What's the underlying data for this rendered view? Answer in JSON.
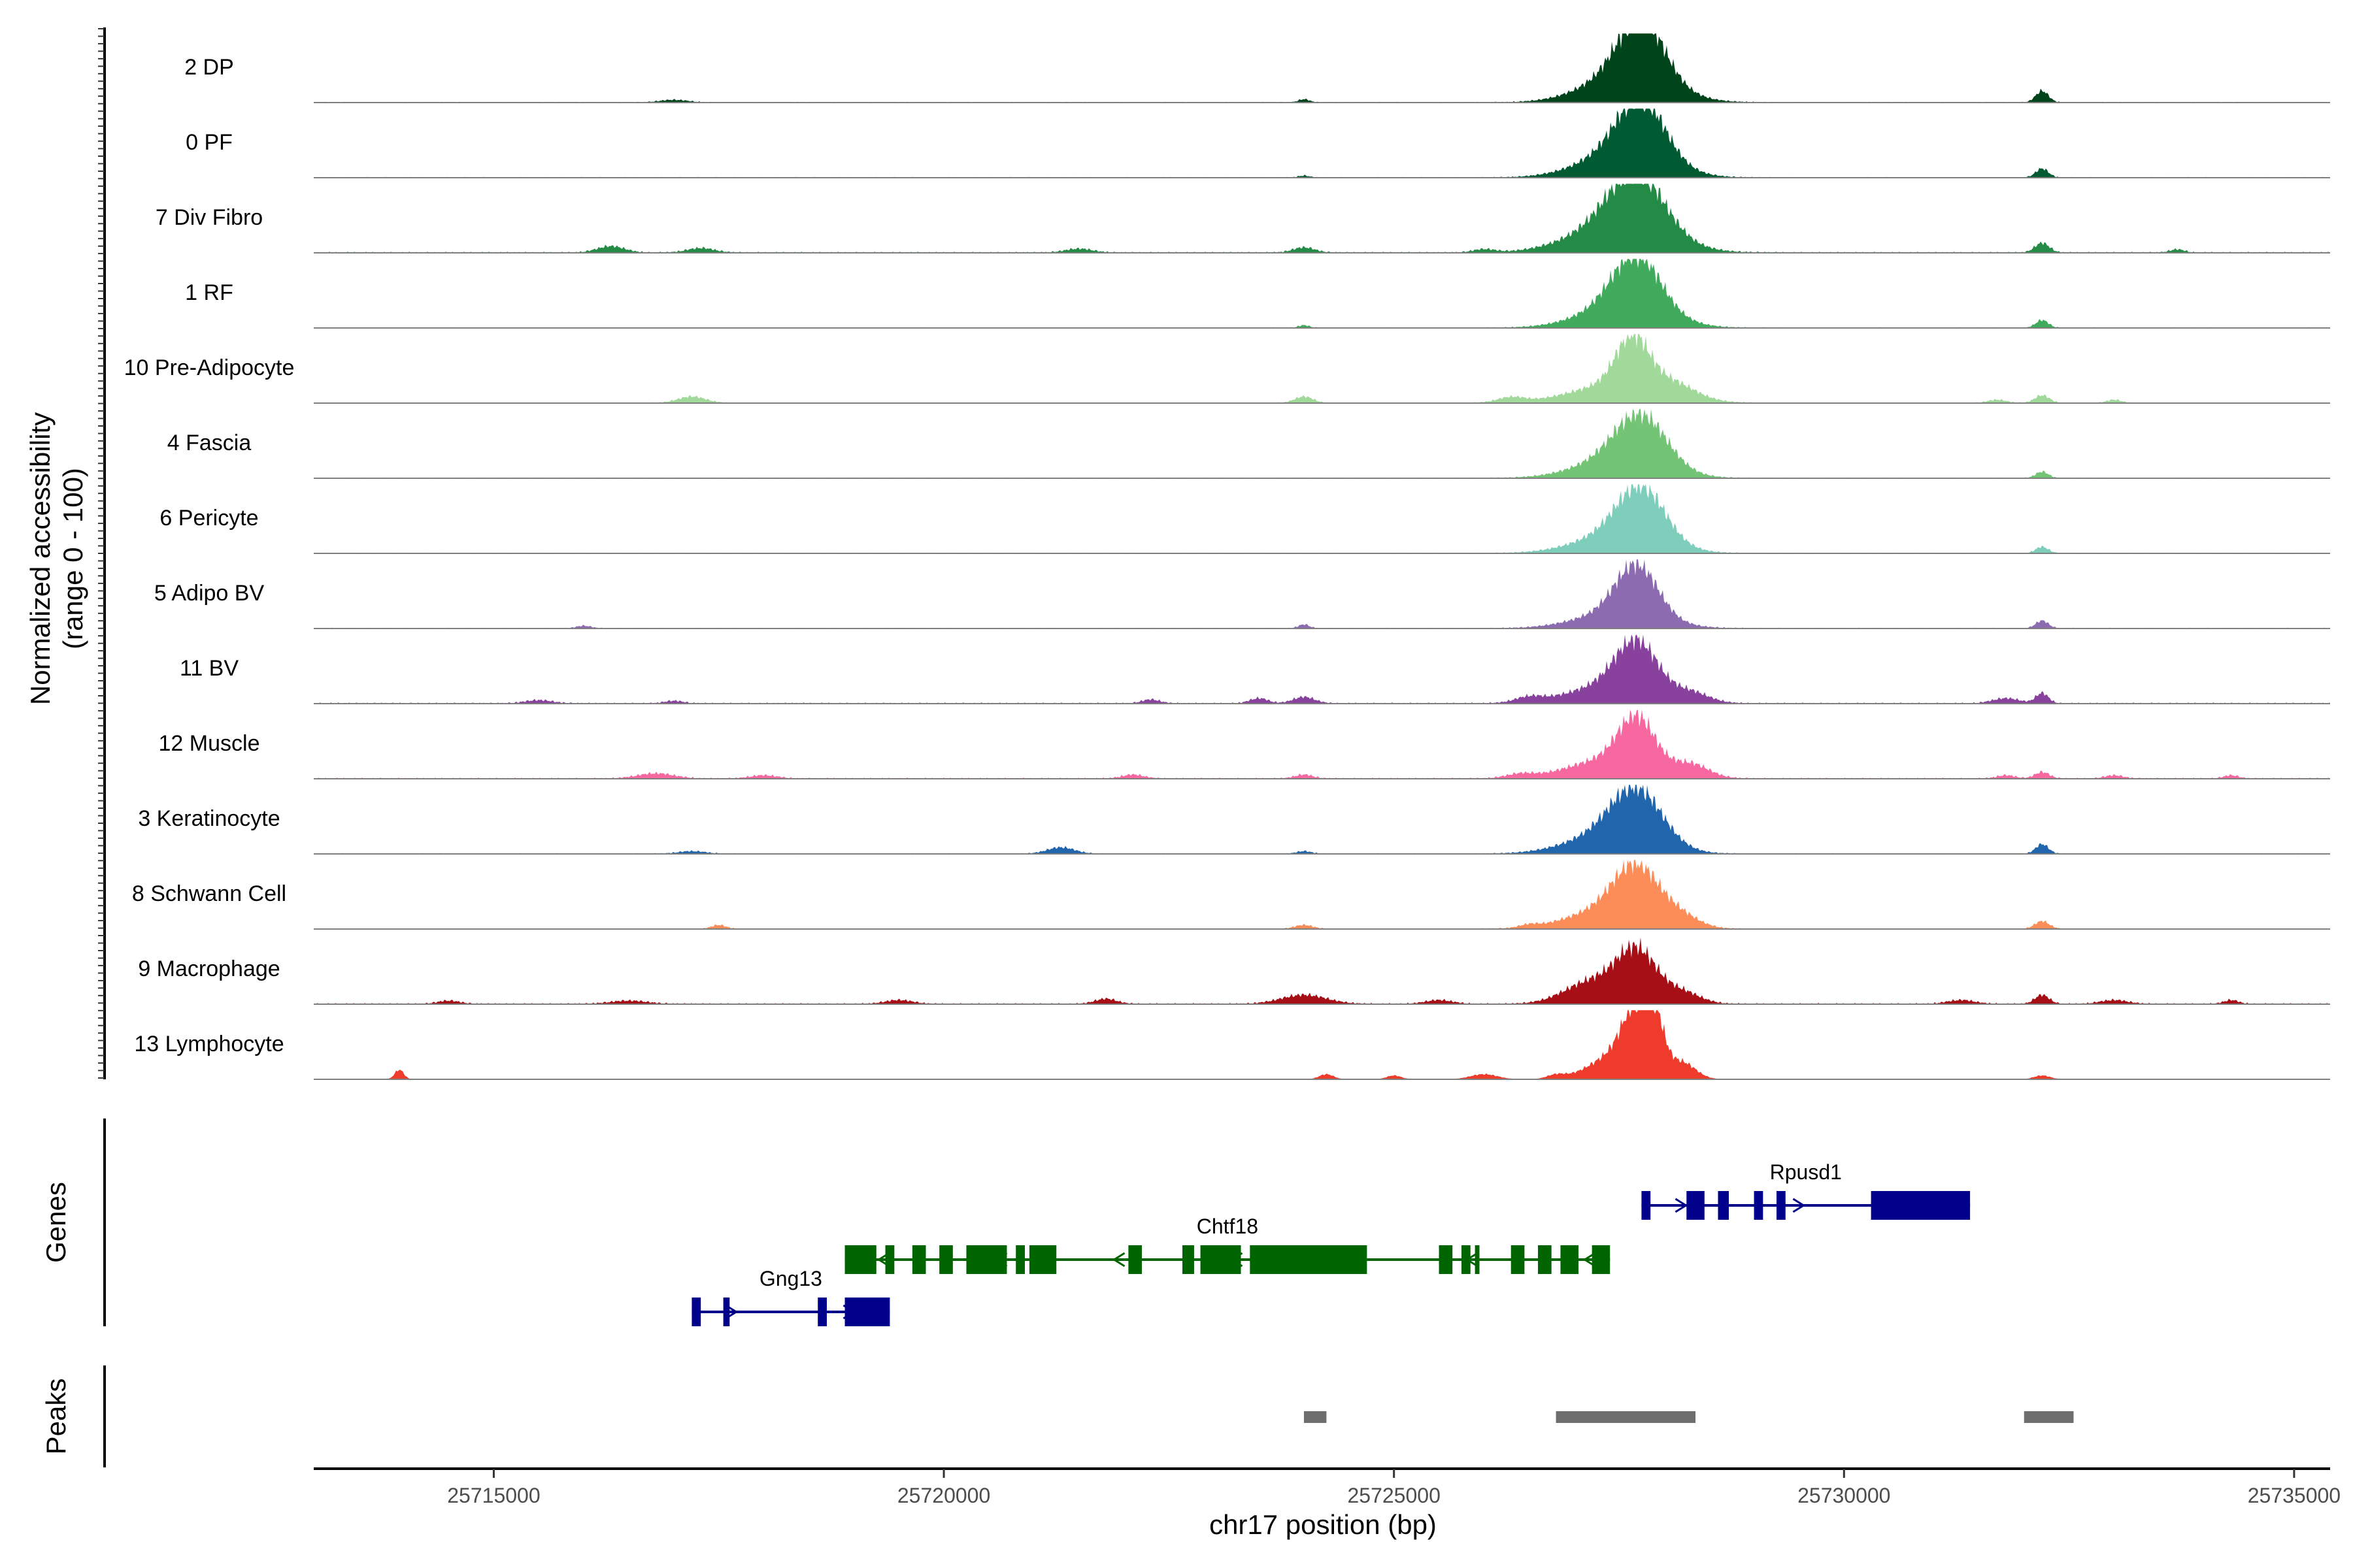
{
  "chart_data": {
    "type": "area",
    "title": "",
    "region": {
      "chrom": "chr17",
      "start": 25713000,
      "end": 25735400
    },
    "xlabel": "chr17 position (bp)",
    "x_ticks": [
      25715000,
      25720000,
      25725000,
      25730000,
      25735000
    ],
    "x_tick_labels": [
      "25715000",
      "25720000",
      "25725000",
      "25730000",
      "25735000"
    ],
    "ylabel": "Normalized accessibility",
    "ylabel2": "(range 0 - 100)",
    "ylim": [
      0,
      100
    ],
    "tracks": [
      {
        "name": "2 DP",
        "color": "#00441b",
        "baseline": 2,
        "peaks": [
          [
            25727750,
            90,
            250
          ],
          [
            25727600,
            45,
            450
          ],
          [
            25732200,
            18,
            70
          ],
          [
            25724000,
            5,
            60
          ],
          [
            25717000,
            4,
            150
          ]
        ]
      },
      {
        "name": "0 PF",
        "color": "#005a32",
        "baseline": 2,
        "peaks": [
          [
            25727750,
            88,
            260
          ],
          [
            25727550,
            40,
            450
          ],
          [
            25732200,
            14,
            70
          ],
          [
            25724000,
            3,
            60
          ]
        ]
      },
      {
        "name": "7 Div Fibro",
        "color": "#238b45",
        "baseline": 3,
        "peaks": [
          [
            25727700,
            85,
            300
          ],
          [
            25727500,
            45,
            500
          ],
          [
            25732200,
            15,
            80
          ],
          [
            25716300,
            10,
            150
          ],
          [
            25717300,
            7,
            150
          ],
          [
            25721500,
            6,
            150
          ],
          [
            25724000,
            8,
            120
          ],
          [
            25726000,
            5,
            120
          ],
          [
            25733700,
            5,
            80
          ]
        ]
      },
      {
        "name": "1 RF",
        "color": "#41ab5d",
        "baseline": 2,
        "peaks": [
          [
            25727700,
            82,
            260
          ],
          [
            25727550,
            35,
            450
          ],
          [
            25732200,
            12,
            70
          ],
          [
            25724000,
            4,
            60
          ]
        ]
      },
      {
        "name": "10 Pre-Adipocyte",
        "color": "#a1d99b",
        "baseline": 2,
        "peaks": [
          [
            25727650,
            75,
            180
          ],
          [
            25727500,
            30,
            500
          ],
          [
            25728100,
            20,
            250
          ],
          [
            25717200,
            10,
            150
          ],
          [
            25724000,
            10,
            100
          ],
          [
            25726300,
            8,
            150
          ],
          [
            25732200,
            12,
            80
          ],
          [
            25731700,
            5,
            100
          ],
          [
            25733000,
            5,
            80
          ]
        ]
      },
      {
        "name": "4 Fascia",
        "color": "#74c476",
        "baseline": 2,
        "peaks": [
          [
            25727750,
            75,
            280
          ],
          [
            25727500,
            30,
            450
          ],
          [
            25732200,
            10,
            70
          ]
        ]
      },
      {
        "name": "6 Pericyte",
        "color": "#7fcdbb",
        "baseline": 2,
        "peaks": [
          [
            25727750,
            80,
            260
          ],
          [
            25727500,
            30,
            450
          ],
          [
            25732200,
            10,
            70
          ]
        ]
      },
      {
        "name": "5 Adipo BV",
        "color": "#8c6bb1",
        "baseline": 2,
        "peaks": [
          [
            25727700,
            78,
            230
          ],
          [
            25727500,
            25,
            450
          ],
          [
            25732200,
            12,
            70
          ],
          [
            25724000,
            6,
            60
          ],
          [
            25716000,
            4,
            80
          ]
        ]
      },
      {
        "name": "11 BV",
        "color": "#88419d",
        "baseline": 3,
        "peaks": [
          [
            25727700,
            78,
            230
          ],
          [
            25727400,
            28,
            450
          ],
          [
            25728300,
            15,
            200
          ],
          [
            25732200,
            16,
            70
          ],
          [
            25731800,
            8,
            150
          ],
          [
            25724000,
            10,
            120
          ],
          [
            25723500,
            8,
            100
          ],
          [
            25722300,
            6,
            100
          ],
          [
            25715500,
            5,
            150
          ],
          [
            25717000,
            4,
            100
          ],
          [
            25726500,
            8,
            150
          ]
        ]
      },
      {
        "name": "12 Muscle",
        "color": "#f768a1",
        "baseline": 3,
        "peaks": [
          [
            25727700,
            75,
            200
          ],
          [
            25727400,
            30,
            450
          ],
          [
            25728300,
            20,
            200
          ],
          [
            25716800,
            8,
            200
          ],
          [
            25718000,
            5,
            150
          ],
          [
            25722100,
            6,
            120
          ],
          [
            25724000,
            6,
            100
          ],
          [
            25726400,
            6,
            150
          ],
          [
            25732200,
            10,
            80
          ],
          [
            25731800,
            5,
            100
          ],
          [
            25733000,
            5,
            100
          ],
          [
            25734300,
            5,
            80
          ]
        ]
      },
      {
        "name": "3 Keratinocyte",
        "color": "#2166ac",
        "baseline": 2,
        "peaks": [
          [
            25727700,
            80,
            280
          ],
          [
            25727400,
            30,
            450
          ],
          [
            25721300,
            10,
            150
          ],
          [
            25732200,
            15,
            70
          ],
          [
            25724000,
            4,
            80
          ],
          [
            25717200,
            4,
            150
          ]
        ]
      },
      {
        "name": "8 Schwann Cell",
        "color": "#fc8d59",
        "baseline": 2,
        "peaks": [
          [
            25727700,
            78,
            250
          ],
          [
            25727400,
            30,
            450
          ],
          [
            25728200,
            15,
            200
          ],
          [
            25724000,
            6,
            100
          ],
          [
            25717500,
            6,
            80
          ],
          [
            25732200,
            12,
            80
          ],
          [
            25726500,
            4,
            100
          ]
        ]
      },
      {
        "name": "9 Macrophage",
        "color": "#a50f15",
        "baseline": 3,
        "peaks": [
          [
            25727700,
            80,
            220
          ],
          [
            25727200,
            35,
            300
          ],
          [
            25728200,
            18,
            200
          ],
          [
            25724000,
            14,
            250
          ],
          [
            25721800,
            8,
            120
          ],
          [
            25719500,
            6,
            150
          ],
          [
            25716500,
            5,
            200
          ],
          [
            25714500,
            5,
            120
          ],
          [
            25732200,
            14,
            80
          ],
          [
            25731300,
            6,
            150
          ],
          [
            25733000,
            6,
            150
          ],
          [
            25734300,
            6,
            80
          ],
          [
            25725500,
            6,
            150
          ]
        ]
      },
      {
        "name": "13 Lymphocyte",
        "color": "#ef3b2c",
        "baseline": 0,
        "peaks": [
          [
            25727700,
            85,
            150
          ],
          [
            25727900,
            70,
            100
          ],
          [
            25727500,
            40,
            300
          ],
          [
            25728200,
            25,
            150
          ],
          [
            25713950,
            15,
            50
          ],
          [
            25724250,
            8,
            80
          ],
          [
            25725000,
            6,
            80
          ],
          [
            25726000,
            8,
            150
          ],
          [
            25726800,
            6,
            100
          ],
          [
            25732200,
            6,
            90
          ]
        ]
      }
    ],
    "genes": [
      {
        "name": "Gng13",
        "color": "#00008b",
        "strand": "+",
        "row": 3,
        "start": 25717200,
        "end": 25719400,
        "exons": [
          [
            25717200,
            25717300
          ],
          [
            25717550,
            25717620
          ],
          [
            25718600,
            25718700
          ],
          [
            25718900,
            25719400
          ]
        ]
      },
      {
        "name": "Chtf18",
        "color": "#006400",
        "strand": "-",
        "row": 2,
        "start": 25718900,
        "end": 25727400,
        "exons": [
          [
            25718900,
            25719250
          ],
          [
            25719350,
            25719450
          ],
          [
            25719650,
            25719800
          ],
          [
            25719950,
            25720100
          ],
          [
            25720250,
            25720700
          ],
          [
            25720800,
            25720900
          ],
          [
            25720950,
            25721250
          ],
          [
            25722050,
            25722200
          ],
          [
            25722650,
            25722780
          ],
          [
            25722850,
            25723300
          ],
          [
            25723400,
            25724700
          ],
          [
            25725500,
            25725650
          ],
          [
            25725750,
            25725850
          ],
          [
            25725900,
            25725950
          ],
          [
            25726300,
            25726450
          ],
          [
            25726600,
            25726750
          ],
          [
            25726850,
            25727050
          ],
          [
            25727200,
            25727400
          ]
        ]
      },
      {
        "name": "Rpusd1",
        "color": "#00008b",
        "strand": "+",
        "row": 1,
        "start": 25727750,
        "end": 25731400,
        "exons": [
          [
            25727750,
            25727850
          ],
          [
            25728250,
            25728450
          ],
          [
            25728600,
            25728720
          ],
          [
            25729000,
            25729100
          ],
          [
            25729250,
            25729350
          ],
          [
            25730300,
            25731400
          ]
        ]
      }
    ],
    "genes_axis_label": "Genes",
    "peaks_axis_label": "Peaks",
    "peak_regions": [
      [
        25724000,
        25724250
      ],
      [
        25726800,
        25728350
      ],
      [
        25732000,
        25732550
      ]
    ]
  }
}
